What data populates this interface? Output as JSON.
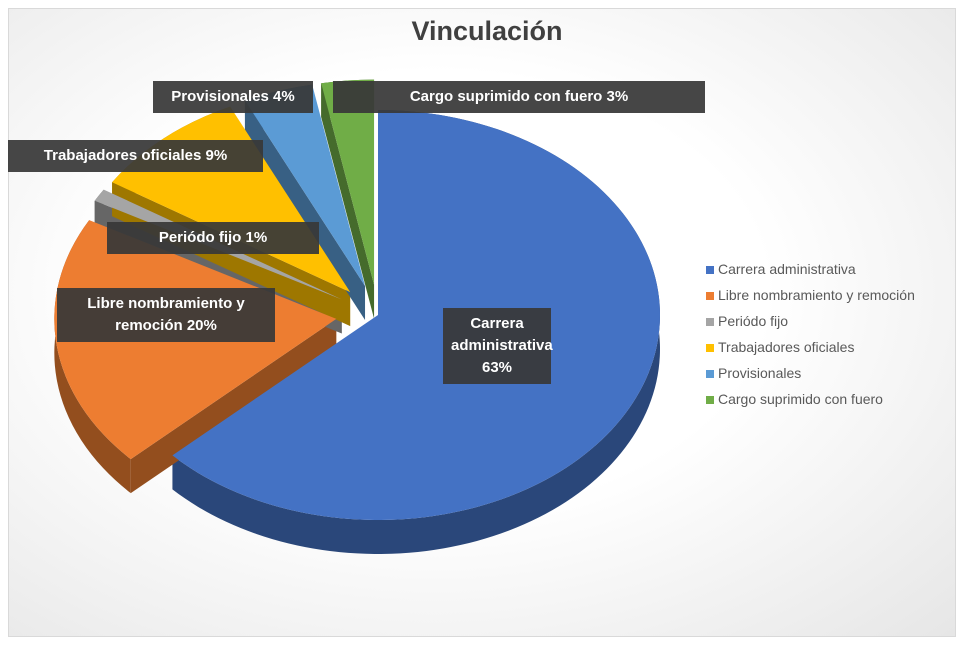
{
  "chart_data": {
    "type": "pie",
    "title": "Vinculación",
    "categories": [
      "Carrera administrativa",
      "Libre nombramiento y remoción",
      "Periódo fijo",
      "Trabajadores oficiales",
      "Provisionales",
      "Cargo suprimido con fuero"
    ],
    "values": [
      63,
      20,
      1,
      9,
      4,
      3
    ],
    "value_labels": [
      "63%",
      "20%",
      "1%",
      "9%",
      "4%",
      "3%"
    ],
    "colors": [
      "#4472c4",
      "#ed7d31",
      "#a5a5a5",
      "#ffc000",
      "#5b9bd5",
      "#70ad47"
    ],
    "legend": "right"
  }
}
